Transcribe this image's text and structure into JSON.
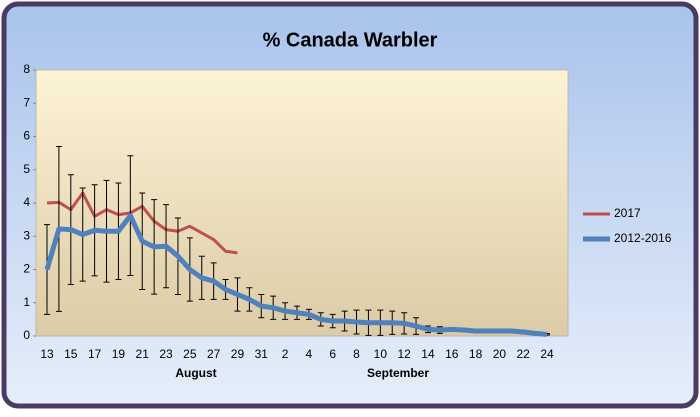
{
  "chart_data": {
    "type": "line",
    "title": "% Canada Warbler",
    "categories": [
      "13",
      null,
      "15",
      null,
      "17",
      null,
      "19",
      null,
      "21",
      null,
      "23",
      null,
      "25",
      null,
      "27",
      null,
      "29",
      null,
      "31",
      null,
      "2",
      null,
      "4",
      null,
      "6",
      null,
      "8",
      null,
      "10",
      null,
      "12",
      null,
      "14",
      null,
      "16",
      null,
      "18",
      null,
      "20",
      null,
      "22",
      null,
      "24"
    ],
    "x_groups": [
      "August",
      "September"
    ],
    "series": [
      {
        "name": "2017",
        "color": "#c0504d",
        "values": [
          4.0,
          4.02,
          3.8,
          4.3,
          3.6,
          3.8,
          3.65,
          3.7,
          3.9,
          3.45,
          3.2,
          3.15,
          3.3,
          3.1,
          2.9,
          2.55,
          2.5,
          null,
          null,
          null,
          null,
          null,
          null,
          null,
          null,
          null,
          null,
          null,
          null,
          null,
          null,
          null,
          null,
          null,
          null,
          null,
          null,
          null,
          null,
          null,
          null,
          null,
          null
        ]
      },
      {
        "name": "2012-2016",
        "color": "#4f81bd",
        "values": [
          2.0,
          3.22,
          3.2,
          3.05,
          3.18,
          3.15,
          3.15,
          3.62,
          2.85,
          2.68,
          2.7,
          2.4,
          2.0,
          1.75,
          1.65,
          1.4,
          1.25,
          1.1,
          0.9,
          0.85,
          0.75,
          0.7,
          0.65,
          0.5,
          0.45,
          0.45,
          0.42,
          0.4,
          0.4,
          0.4,
          0.38,
          0.3,
          0.2,
          0.18,
          0.2,
          0.18,
          0.15,
          0.15,
          0.15,
          0.15,
          0.12,
          0.08,
          0.05
        ],
        "errors": [
          1.35,
          2.48,
          1.65,
          1.4,
          1.37,
          1.53,
          1.45,
          1.8,
          1.45,
          1.42,
          1.25,
          1.15,
          0.95,
          0.65,
          0.55,
          0.3,
          0.5,
          0.35,
          0.35,
          0.35,
          0.25,
          0.2,
          0.15,
          0.2,
          0.2,
          0.3,
          0.36,
          0.38,
          0.38,
          0.35,
          0.32,
          0.25,
          0.1,
          0.1,
          0.05,
          0.05,
          0.05,
          0.05,
          0.05,
          0.05,
          0.05,
          0.03,
          0.02
        ]
      }
    ],
    "ylim": [
      0,
      8
    ],
    "yticks": [
      0,
      1,
      2,
      3,
      4,
      5,
      6,
      7,
      8
    ],
    "grid": false,
    "legend": "right"
  }
}
